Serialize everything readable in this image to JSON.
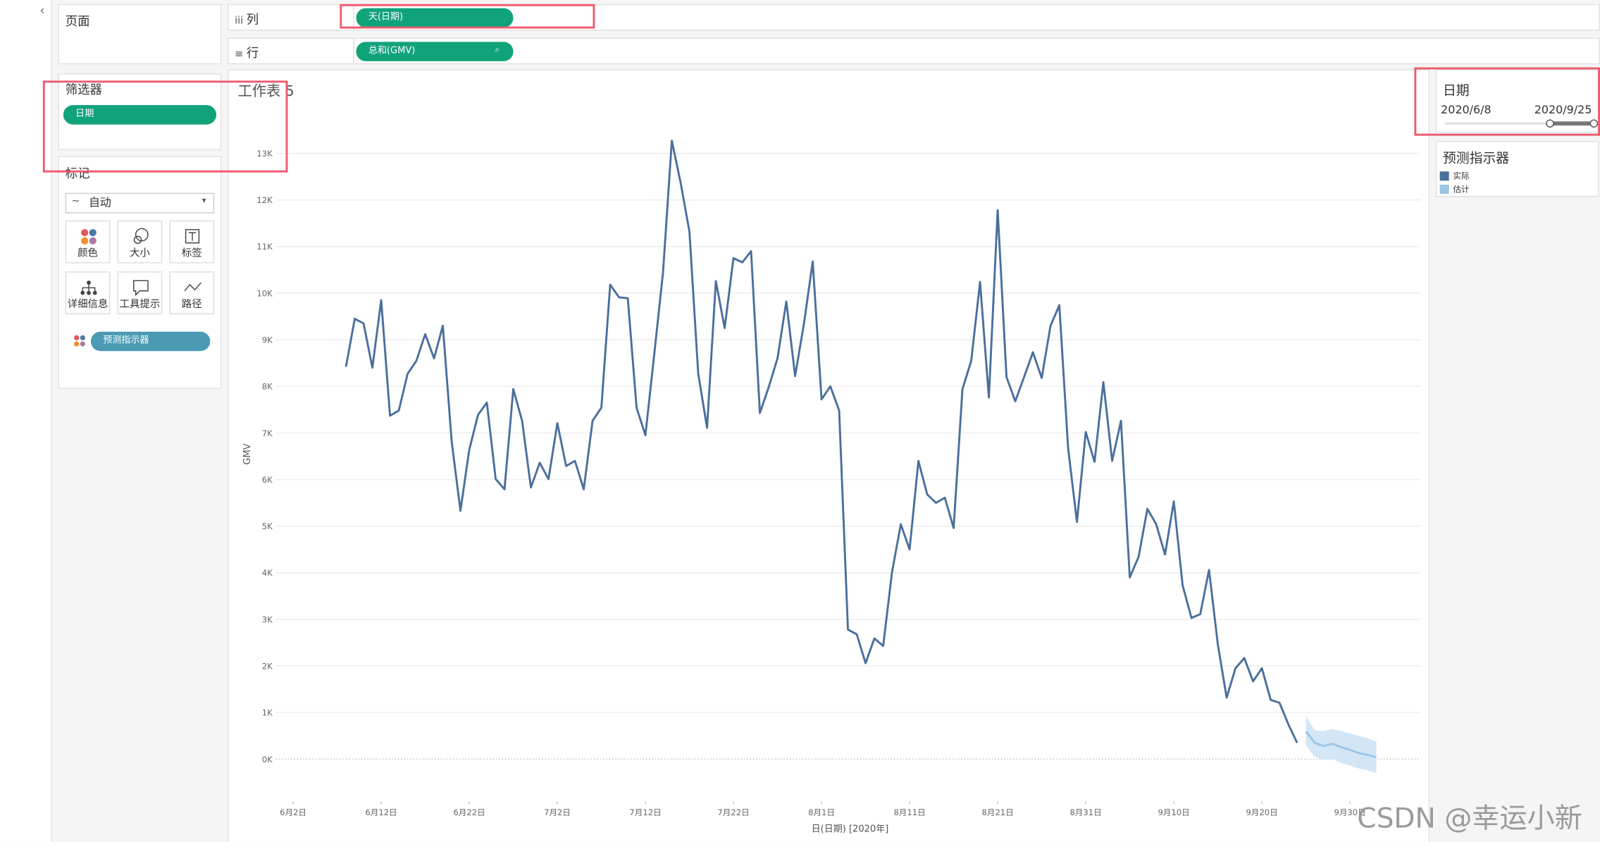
{
  "toolbar": {
    "pages": "页面",
    "columns": "列",
    "rows": "行",
    "columns_pill": "天(日期)",
    "rows_pill": "总和(GMV)"
  },
  "filters": {
    "title": "筛选器",
    "pill": "日期"
  },
  "marks": {
    "title": "标记",
    "type": "自动",
    "buttons": [
      "颜色",
      "大小",
      "标签",
      "详细信息",
      "工具提示",
      "路径"
    ],
    "pill": "预测指示器"
  },
  "date_filter": {
    "title": "日期",
    "start": "2020/6/8",
    "end": "2020/9/25"
  },
  "legend": {
    "title": "预测指示器"
  },
  "watermark": "CSDN @幸运小新",
  "chart_data": {
    "type": "line",
    "title": "工作表 5",
    "x_label": "日(日期) [2020年]",
    "y_label": "GMV",
    "xlim": [
      "2020-05-31",
      "2020-10-08"
    ],
    "xticks": [
      {
        "value": "2020-06-02",
        "label": "6月2日"
      },
      {
        "value": "2020-06-12",
        "label": "6月12日"
      },
      {
        "value": "2020-06-22",
        "label": "6月22日"
      },
      {
        "value": "2020-07-02",
        "label": "7月2日"
      },
      {
        "value": "2020-07-12",
        "label": "7月12日"
      },
      {
        "value": "2020-07-22",
        "label": "7月22日"
      },
      {
        "value": "2020-08-01",
        "label": "8月1日"
      },
      {
        "value": "2020-08-11",
        "label": "8月11日"
      },
      {
        "value": "2020-08-21",
        "label": "8月21日"
      },
      {
        "value": "2020-08-31",
        "label": "8月31日"
      },
      {
        "value": "2020-09-10",
        "label": "9月10日"
      },
      {
        "value": "2020-09-20",
        "label": "9月20日"
      },
      {
        "value": "2020-09-30",
        "label": "9月30日"
      }
    ],
    "ylim": [
      -0.9,
      14.1
    ],
    "yticks": [
      {
        "value": 0,
        "label": "0K"
      },
      {
        "value": 1,
        "label": "1K"
      },
      {
        "value": 2,
        "label": "2K"
      },
      {
        "value": 3,
        "label": "3K"
      },
      {
        "value": 4,
        "label": "4K"
      },
      {
        "value": 5,
        "label": "5K"
      },
      {
        "value": 6,
        "label": "6K"
      },
      {
        "value": 7,
        "label": "7K"
      },
      {
        "value": 8,
        "label": "8K"
      },
      {
        "value": 9,
        "label": "9K"
      },
      {
        "value": 10,
        "label": "10K"
      },
      {
        "value": 11,
        "label": "11K"
      },
      {
        "value": 12,
        "label": "12K"
      },
      {
        "value": 13,
        "label": "13K"
      }
    ],
    "grid": true,
    "series": [
      {
        "name": "实际",
        "color": "#4a6f9c",
        "x": [
          "2020-06-08",
          "2020-06-09",
          "2020-06-10",
          "2020-06-11",
          "2020-06-12",
          "2020-06-13",
          "2020-06-14",
          "2020-06-15",
          "2020-06-16",
          "2020-06-17",
          "2020-06-18",
          "2020-06-19",
          "2020-06-20",
          "2020-06-21",
          "2020-06-22",
          "2020-06-23",
          "2020-06-24",
          "2020-06-25",
          "2020-06-26",
          "2020-06-27",
          "2020-06-28",
          "2020-06-29",
          "2020-06-30",
          "2020-07-01",
          "2020-07-02",
          "2020-07-03",
          "2020-07-04",
          "2020-07-05",
          "2020-07-06",
          "2020-07-07",
          "2020-07-08",
          "2020-07-09",
          "2020-07-10",
          "2020-07-11",
          "2020-07-12",
          "2020-07-13",
          "2020-07-14",
          "2020-07-15",
          "2020-07-16",
          "2020-07-17",
          "2020-07-18",
          "2020-07-19",
          "2020-07-20",
          "2020-07-21",
          "2020-07-22",
          "2020-07-23",
          "2020-07-24",
          "2020-07-25",
          "2020-07-26",
          "2020-07-27",
          "2020-07-28",
          "2020-07-29",
          "2020-07-30",
          "2020-07-31",
          "2020-08-01",
          "2020-08-02",
          "2020-08-03",
          "2020-08-04",
          "2020-08-05",
          "2020-08-06",
          "2020-08-07",
          "2020-08-08",
          "2020-08-09",
          "2020-08-10",
          "2020-08-11",
          "2020-08-12",
          "2020-08-13",
          "2020-08-14",
          "2020-08-15",
          "2020-08-16",
          "2020-08-17",
          "2020-08-18",
          "2020-08-19",
          "2020-08-20",
          "2020-08-21",
          "2020-08-22",
          "2020-08-23",
          "2020-08-24",
          "2020-08-25",
          "2020-08-26",
          "2020-08-27",
          "2020-08-28",
          "2020-08-29",
          "2020-08-30",
          "2020-08-31",
          "2020-09-01",
          "2020-09-02",
          "2020-09-03",
          "2020-09-04",
          "2020-09-05",
          "2020-09-06",
          "2020-09-07",
          "2020-09-08",
          "2020-09-09",
          "2020-09-10",
          "2020-09-11",
          "2020-09-12",
          "2020-09-13",
          "2020-09-14",
          "2020-09-15",
          "2020-09-16",
          "2020-09-17",
          "2020-09-18",
          "2020-09-19",
          "2020-09-20",
          "2020-09-21",
          "2020-09-22",
          "2020-09-23",
          "2020-09-24"
        ],
        "values": [
          8.42,
          9.45,
          9.35,
          8.4,
          9.85,
          7.37,
          7.48,
          8.27,
          8.55,
          9.12,
          8.6,
          9.3,
          6.82,
          5.33,
          6.64,
          7.39,
          7.65,
          6.01,
          5.79,
          7.94,
          7.26,
          5.83,
          6.36,
          6.01,
          7.21,
          6.29,
          6.4,
          5.79,
          7.26,
          7.54,
          10.18,
          9.91,
          9.89,
          7.54,
          6.95,
          8.68,
          10.44,
          13.27,
          12.37,
          11.32,
          8.27,
          7.11,
          10.26,
          9.25,
          10.75,
          10.66,
          10.9,
          7.43,
          7.98,
          8.6,
          9.82,
          8.22,
          9.34,
          10.68,
          7.72,
          8.0,
          7.48,
          2.78,
          2.68,
          2.06,
          2.59,
          2.43,
          4.01,
          5.04,
          4.5,
          6.4,
          5.68,
          5.5,
          5.61,
          4.96,
          7.94,
          8.55,
          10.24,
          7.76,
          11.78,
          8.2,
          7.68,
          8.2,
          8.73,
          8.18,
          9.3,
          9.74,
          6.67,
          5.09,
          7.02,
          6.38,
          8.09,
          6.4,
          7.26,
          3.9,
          4.34,
          5.37,
          5.04,
          4.39,
          5.53,
          3.73,
          3.03,
          3.11,
          4.06,
          2.46,
          1.32,
          1.95,
          2.17,
          1.67,
          1.95,
          1.27,
          1.21,
          0.75,
          0.35
        ]
      },
      {
        "name": "估计",
        "color": "#9cc6e6",
        "band_color": "#d3e6f6",
        "x": [
          "2020-09-25",
          "2020-09-26",
          "2020-09-27",
          "2020-09-28",
          "2020-09-29",
          "2020-09-30",
          "2020-10-01",
          "2020-10-02",
          "2020-10-03"
        ],
        "values": [
          0.6,
          0.35,
          0.28,
          0.33,
          0.26,
          0.2,
          0.13,
          0.09,
          0.04
        ],
        "upper": [
          0.92,
          0.62,
          0.6,
          0.65,
          0.6,
          0.55,
          0.5,
          0.45,
          0.38
        ],
        "lower": [
          0.3,
          0.05,
          -0.02,
          0.0,
          -0.08,
          -0.14,
          -0.2,
          -0.24,
          -0.3
        ]
      }
    ]
  }
}
